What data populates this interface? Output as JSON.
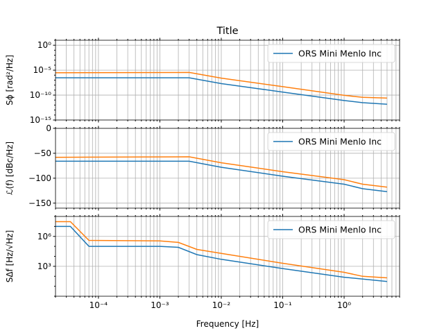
{
  "figure": {
    "title": "Title"
  },
  "chart_data": [
    {
      "type": "line",
      "title": "Title",
      "xlabel": "",
      "ylabel": "Sϕ [rad²/Hz]",
      "xscale": "log",
      "yscale": "log",
      "xlim": [
        2e-05,
        8
      ],
      "ylim": [
        1e-15,
        10
      ],
      "y_ticks": [
        {
          "value": 1,
          "label": "10⁰"
        },
        {
          "value": 1e-05,
          "label": "10⁻⁵"
        },
        {
          "value": 1e-10,
          "label": "10⁻¹⁰"
        },
        {
          "value": 1e-15,
          "label": "10⁻¹⁵"
        }
      ],
      "grid": true,
      "legend": "upper right",
      "series": [
        {
          "name": "ORS Mini Menlo Inc",
          "color": "#1f77b4",
          "x": [
            2e-05,
            0.003,
            0.01,
            0.1,
            1,
            2,
            5
          ],
          "y": [
            3e-07,
            3e-07,
            2e-08,
            4e-10,
            8e-12,
            3e-12,
            1.5e-12
          ]
        },
        {
          "name": "",
          "color": "#ff7f0e",
          "x": [
            2e-05,
            0.003,
            0.01,
            0.1,
            1,
            2,
            5
          ],
          "y": [
            3e-06,
            3.5e-06,
            2.5e-07,
            5e-09,
            9e-11,
            3.5e-11,
            2.5e-11
          ]
        }
      ]
    },
    {
      "type": "line",
      "xlabel": "",
      "ylabel": "ℒ(f) [dBc/Hz]",
      "xscale": "log",
      "yscale": "linear",
      "xlim": [
        2e-05,
        8
      ],
      "ylim": [
        -160,
        0
      ],
      "y_ticks": [
        {
          "value": 0,
          "label": "0"
        },
        {
          "value": -50,
          "label": "−50"
        },
        {
          "value": -100,
          "label": "−100"
        },
        {
          "value": -150,
          "label": "−150"
        }
      ],
      "grid": true,
      "legend": "upper right",
      "series": [
        {
          "name": "ORS Mini Menlo Inc",
          "color": "#1f77b4",
          "x": [
            2e-05,
            0.003,
            0.01,
            0.1,
            1,
            2,
            5
          ],
          "y": [
            -66,
            -66,
            -78,
            -96,
            -112,
            -121,
            -127
          ]
        },
        {
          "name": "",
          "color": "#ff7f0e",
          "x": [
            2e-05,
            0.003,
            0.01,
            0.1,
            1,
            2,
            5
          ],
          "y": [
            -58,
            -57,
            -69,
            -87,
            -103,
            -112,
            -118
          ]
        }
      ]
    },
    {
      "type": "line",
      "xlabel": "Frequency [Hz]",
      "ylabel": "SΔf [Hz/√Hz]",
      "xscale": "log",
      "yscale": "log",
      "xlim": [
        2e-05,
        8
      ],
      "ylim": [
        1,
        100000000.0
      ],
      "x_ticks": [
        {
          "value": 0.0001,
          "label": "10⁻⁴"
        },
        {
          "value": 0.001,
          "label": "10⁻³"
        },
        {
          "value": 0.01,
          "label": "10⁻²"
        },
        {
          "value": 0.1,
          "label": "10⁻¹"
        },
        {
          "value": 1,
          "label": "10⁰"
        }
      ],
      "y_ticks": [
        {
          "value": 1000000,
          "label": "10⁶"
        },
        {
          "value": 1000,
          "label": "10³"
        }
      ],
      "grid": true,
      "legend": "upper right",
      "series": [
        {
          "name": "ORS Mini Menlo Inc",
          "color": "#1f77b4",
          "x": [
            2e-05,
            3.5e-05,
            7e-05,
            0.001,
            0.002,
            0.004,
            0.01,
            0.1,
            1,
            5
          ],
          "y": [
            10000000,
            10000000,
            100000,
            100000,
            80000,
            15000,
            5000,
            600,
            80,
            30
          ]
        },
        {
          "name": "",
          "color": "#ff7f0e",
          "x": [
            2e-05,
            3.5e-05,
            7e-05,
            0.001,
            0.002,
            0.004,
            0.01,
            0.1,
            1,
            2,
            5
          ],
          "y": [
            30000000,
            30000000,
            400000,
            350000,
            250000,
            50000,
            20000,
            2000,
            250,
            100,
            70
          ]
        }
      ]
    }
  ]
}
